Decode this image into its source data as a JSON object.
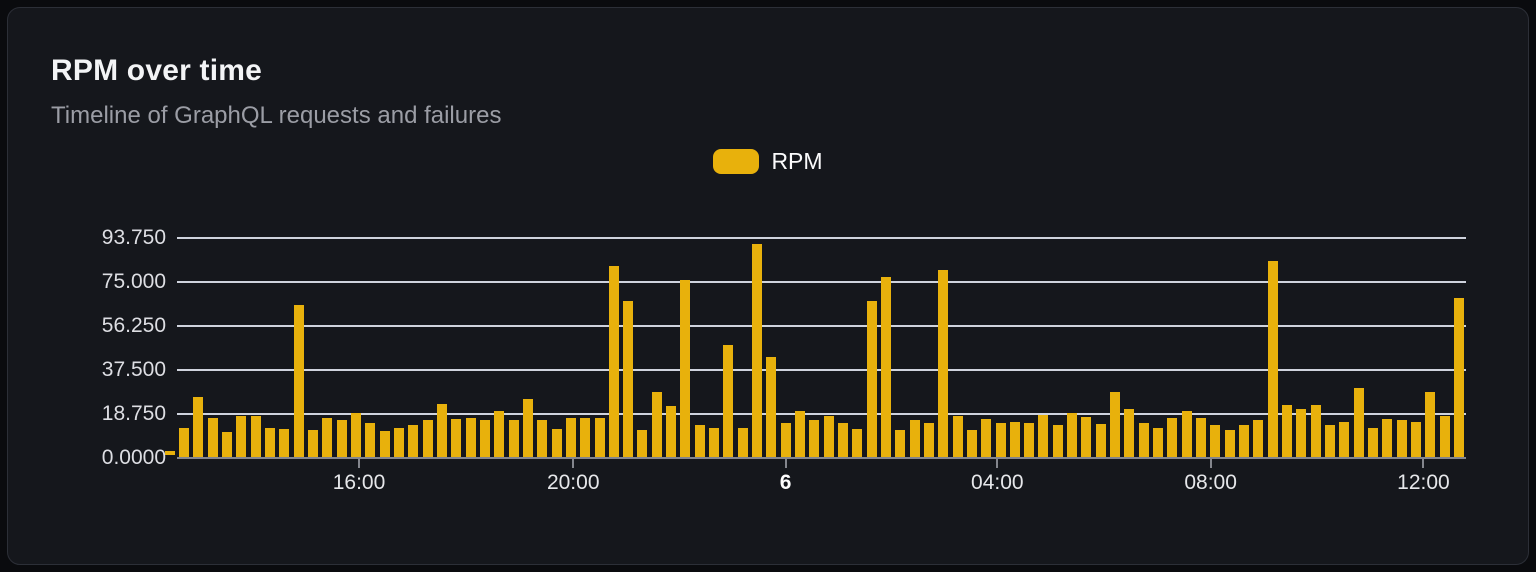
{
  "card": {
    "title": "RPM over time",
    "subtitle": "Timeline of GraphQL requests and failures"
  },
  "legend": {
    "items": [
      {
        "label": "RPM",
        "color": "#e8b10c"
      }
    ]
  },
  "colors": {
    "page_background": "#0a0b0e",
    "card_background": "#15171c",
    "card_border": "#2c2f37",
    "bar": "#e8b10c",
    "gridline": "rgba(223,228,238,0.92)",
    "axis": "#84868d",
    "title_text": "#f3f4f6",
    "subtitle_text": "#9b9da5",
    "tick_text": "#dddee3"
  },
  "chart_data": {
    "type": "bar",
    "title": "RPM over time",
    "xlabel": "",
    "ylabel": "",
    "ylim": [
      0,
      93.75
    ],
    "grid": true,
    "legend_position": "top-center",
    "series": [
      {
        "name": "RPM",
        "values": [
          13,
          26,
          17,
          11,
          18,
          18,
          13,
          12.5,
          65,
          12,
          17,
          16,
          19,
          15,
          11.5,
          13,
          14,
          16,
          23,
          16.5,
          17,
          16,
          20,
          16,
          25,
          16,
          12.5,
          17,
          17,
          17,
          82,
          67,
          12,
          28,
          22,
          76,
          14,
          13,
          48,
          13,
          91,
          43,
          15,
          20,
          16,
          18,
          15,
          12.5,
          67,
          77,
          12,
          16,
          15,
          80,
          18,
          12,
          16.5,
          15,
          15.5,
          15,
          18.5,
          14,
          19,
          17.5,
          14.5,
          28,
          21,
          15,
          13,
          17,
          20,
          17,
          14,
          12,
          14,
          16,
          84,
          22.5,
          21,
          22.5,
          14,
          15.5,
          30,
          13,
          16.5,
          16,
          15.5,
          28,
          18,
          68
        ]
      }
    ],
    "clipped_first_bar_value": 2,
    "y_ticks": [
      {
        "label": "93.750",
        "value": 93.75
      },
      {
        "label": "75.000",
        "value": 75
      },
      {
        "label": "56.250",
        "value": 56.25
      },
      {
        "label": "37.500",
        "value": 37.5
      },
      {
        "label": "18.750",
        "value": 18.75
      },
      {
        "label": "0.0000",
        "value": 0
      }
    ],
    "x_ticks": [
      {
        "label": "16:00",
        "pos": 0.1412,
        "bold": false
      },
      {
        "label": "20:00",
        "pos": 0.3074,
        "bold": false
      },
      {
        "label": "6",
        "pos": 0.4721,
        "bold": true
      },
      {
        "label": "04:00",
        "pos": 0.6364,
        "bold": false
      },
      {
        "label": "08:00",
        "pos": 0.8019,
        "bold": false
      },
      {
        "label": "12:00",
        "pos": 0.967,
        "bold": false
      }
    ]
  }
}
